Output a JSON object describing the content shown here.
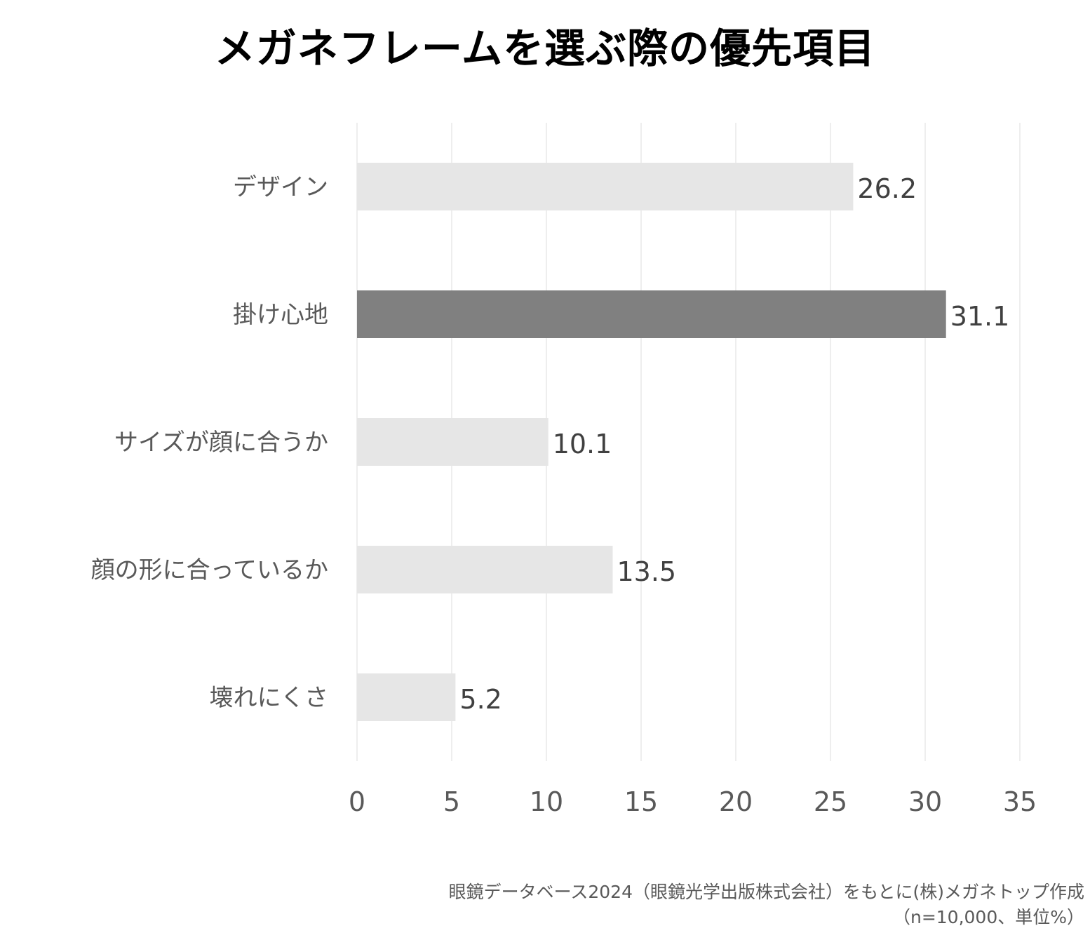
{
  "chart_data": {
    "type": "bar",
    "orientation": "horizontal",
    "title": "メガネフレームを選ぶ際の優先項目",
    "categories": [
      "デザイン",
      "掛け心地",
      "サイズが顔に合うか",
      "顔の形に合っているか",
      "壊れにくさ"
    ],
    "values": [
      26.2,
      31.1,
      10.1,
      13.5,
      5.2
    ],
    "value_labels": [
      "26.2",
      "31.1",
      "10.1",
      "13.5",
      "5.2"
    ],
    "highlight_index": 1,
    "x_ticks": [
      "0",
      "5",
      "10",
      "15",
      "20",
      "25",
      "30",
      "35"
    ],
    "xlim": [
      0,
      35
    ],
    "grid": true,
    "colors": {
      "bar": "#e6e6e6",
      "highlight": "#808080",
      "grid": "#e8e8e8",
      "label": "#595959",
      "value": "#404040"
    }
  },
  "footer": {
    "source": "眼鏡データベース2024（眼鏡光学出版株式会社）をもとに(株)メガネトップ作成",
    "note": "（n=10,000、単位%）"
  }
}
